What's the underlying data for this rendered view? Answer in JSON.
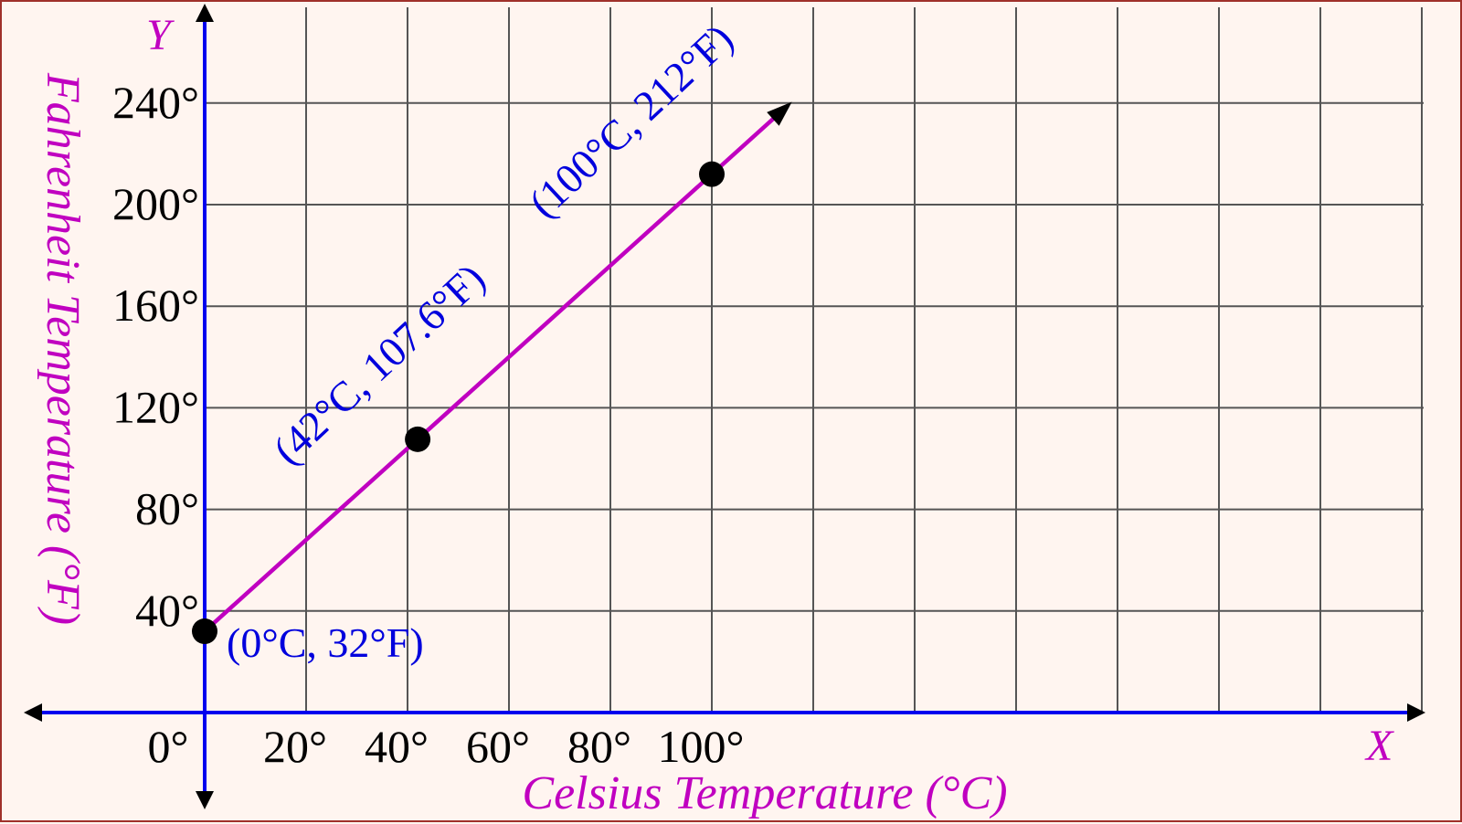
{
  "chart_data": {
    "type": "line",
    "xlabel": "Celsius Temperature (°C)",
    "ylabel": "Fahrenheit Temperature (°F)",
    "x_axis_letter": "X",
    "y_axis_letter": "Y",
    "x_ticks": [
      "0°",
      "20°",
      "40°",
      "60°",
      "80°",
      "100°"
    ],
    "y_ticks": [
      "40°",
      "80°",
      "120°",
      "160°",
      "200°",
      "240°"
    ],
    "x_tick_values": [
      0,
      20,
      40,
      60,
      80,
      100
    ],
    "y_tick_values": [
      40,
      80,
      120,
      160,
      200,
      240
    ],
    "xlim": [
      -35,
      240
    ],
    "ylim": [
      -60,
      275
    ],
    "grid": true,
    "grid_step_x": 20,
    "grid_step_y": 40,
    "line": {
      "x": [
        0,
        115
      ],
      "y": [
        32,
        239
      ],
      "arrow_end": true,
      "color": "#c000c0"
    },
    "points": [
      {
        "x": 0,
        "y": 32,
        "label": "(0°C, 32°F)"
      },
      {
        "x": 42,
        "y": 107.6,
        "label": "(42°C, 107.6°F)"
      },
      {
        "x": 100,
        "y": 212,
        "label": "(100°C, 212°F)"
      }
    ],
    "colors": {
      "axis": "#0000ee",
      "line": "#c000c0",
      "grid": "#555555",
      "point": "#000000",
      "point_label": "#0000dd",
      "background": "#fff5f0"
    }
  }
}
